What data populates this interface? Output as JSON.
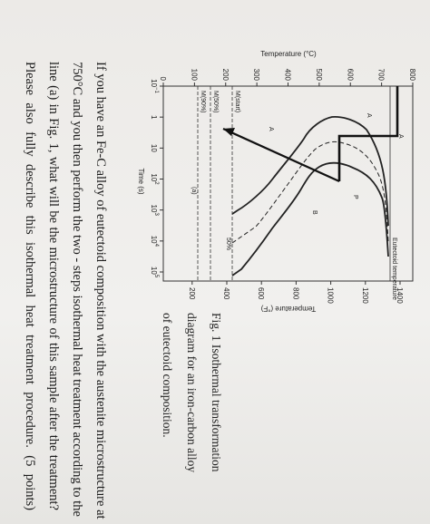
{
  "figure": {
    "y_axis_left": {
      "title": "Temperature (°C)",
      "ticks": [
        "800",
        "700",
        "600",
        "500",
        "400",
        "300",
        "200",
        "100",
        "0"
      ]
    },
    "y_axis_right": {
      "title": "Temperature (°F)",
      "ticks": [
        "1400",
        "1200",
        "1000",
        "800",
        "600",
        "400",
        "200"
      ]
    },
    "x_axis": {
      "title": "Time (s)",
      "ticks": [
        {
          "text": "10",
          "sup": "−1"
        },
        {
          "text": "1"
        },
        {
          "text": "10"
        },
        {
          "text": "10",
          "sup": "2"
        },
        {
          "text": "10",
          "sup": "3"
        },
        {
          "text": "10",
          "sup": "4"
        },
        {
          "text": "10",
          "sup": "5"
        }
      ]
    },
    "labels": [
      "A",
      "A",
      "P",
      "B",
      "A",
      "M(start)",
      "M(50%)",
      "M(90%)",
      "50%",
      "Eutectoid temperature",
      "(a)"
    ]
  },
  "caption": [
    "Fig. 1 Isothermal transformation",
    "diagram for an iron-carbon alloy",
    "of eutectoid composition."
  ],
  "question": [
    "If you have an Fe-C alloy of eutectoid composition with the austenite microstructure at",
    "750°C and you then perform the two - steps isothermal heat treatment according to the",
    "line (a) in Fig. 1, what will be the microstructure of this sample after the treatment?",
    "Please also fully describe this isothermal heat treatment procedure. (5 points)"
  ]
}
